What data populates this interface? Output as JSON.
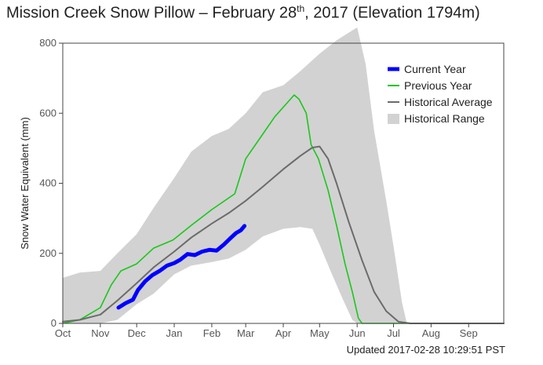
{
  "title": {
    "main": "Mission Creek Snow Pillow – February 28",
    "sup": "th",
    "rest": ", 2017 (Elevation 1794m)"
  },
  "updated": "Updated 2017-02-28 10:29:51 PST",
  "chart_data": {
    "type": "area",
    "title": "Mission Creek Snow Pillow – February 28th, 2017 (Elevation 1794m)",
    "xlabel": "",
    "ylabel": "Snow Water Equivalent (mm)",
    "xlim": [
      "2016-10-01",
      "2017-09-30"
    ],
    "ylim": [
      0,
      800
    ],
    "yticks": [
      0,
      200,
      400,
      600,
      800
    ],
    "month_ticks": [
      {
        "date": "2016-10-01",
        "label": "Oct"
      },
      {
        "date": "2016-11-01",
        "label": "Nov"
      },
      {
        "date": "2016-12-01",
        "label": "Dec"
      },
      {
        "date": "2017-01-01",
        "label": "Jan"
      },
      {
        "date": "2017-02-01",
        "label": "Feb"
      },
      {
        "date": "2017-03-01",
        "label": "Mar"
      },
      {
        "date": "2017-04-01",
        "label": "Apr"
      },
      {
        "date": "2017-05-01",
        "label": "May"
      },
      {
        "date": "2017-06-01",
        "label": "Jun"
      },
      {
        "date": "2017-07-01",
        "label": "Jul"
      },
      {
        "date": "2017-08-01",
        "label": "Aug"
      },
      {
        "date": "2017-09-01",
        "label": "Sep"
      }
    ],
    "legend_position": "top-right",
    "grid": false,
    "colors": {
      "current": "#0000ff",
      "previous": "#19c819",
      "average": "#6b6b6b",
      "range": "#d2d2d2"
    },
    "series": [
      {
        "name": "Current Year",
        "key": "current",
        "points": [
          [
            "2016-11-16",
            45
          ],
          [
            "2016-11-22",
            58
          ],
          [
            "2016-11-28",
            68
          ],
          [
            "2016-12-02",
            95
          ],
          [
            "2016-12-08",
            120
          ],
          [
            "2016-12-14",
            138
          ],
          [
            "2016-12-20",
            150
          ],
          [
            "2016-12-26",
            165
          ],
          [
            "2017-01-01",
            172
          ],
          [
            "2017-01-06",
            182
          ],
          [
            "2017-01-12",
            198
          ],
          [
            "2017-01-18",
            195
          ],
          [
            "2017-01-24",
            205
          ],
          [
            "2017-01-30",
            210
          ],
          [
            "2017-02-05",
            208
          ],
          [
            "2017-02-11",
            225
          ],
          [
            "2017-02-16",
            242
          ],
          [
            "2017-02-21",
            258
          ],
          [
            "2017-02-25",
            266
          ],
          [
            "2017-02-28",
            278
          ]
        ]
      },
      {
        "name": "Previous Year",
        "key": "previous",
        "points": [
          [
            "2016-10-01",
            0
          ],
          [
            "2016-10-15",
            10
          ],
          [
            "2016-11-01",
            45
          ],
          [
            "2016-11-10",
            110
          ],
          [
            "2016-11-18",
            150
          ],
          [
            "2016-12-01",
            170
          ],
          [
            "2016-12-15",
            215
          ],
          [
            "2016-12-31",
            238
          ],
          [
            "2017-01-15",
            280
          ],
          [
            "2017-02-01",
            325
          ],
          [
            "2017-02-20",
            370
          ],
          [
            "2017-03-01",
            470
          ],
          [
            "2017-03-15",
            540
          ],
          [
            "2017-03-25",
            590
          ],
          [
            "2017-04-03",
            625
          ],
          [
            "2017-04-10",
            652
          ],
          [
            "2017-04-14",
            640
          ],
          [
            "2017-04-20",
            600
          ],
          [
            "2017-04-24",
            510
          ],
          [
            "2017-04-30",
            470
          ],
          [
            "2017-05-08",
            380
          ],
          [
            "2017-05-15",
            280
          ],
          [
            "2017-05-22",
            170
          ],
          [
            "2017-05-28",
            90
          ],
          [
            "2017-06-02",
            15
          ],
          [
            "2017-06-05",
            0
          ],
          [
            "2017-09-30",
            0
          ]
        ]
      },
      {
        "name": "Historical Average",
        "key": "average",
        "points": [
          [
            "2016-10-01",
            5
          ],
          [
            "2016-10-15",
            10
          ],
          [
            "2016-11-01",
            25
          ],
          [
            "2016-11-15",
            65
          ],
          [
            "2016-12-01",
            115
          ],
          [
            "2016-12-15",
            160
          ],
          [
            "2017-01-01",
            205
          ],
          [
            "2017-01-15",
            245
          ],
          [
            "2017-02-01",
            285
          ],
          [
            "2017-02-15",
            315
          ],
          [
            "2017-03-01",
            350
          ],
          [
            "2017-03-15",
            390
          ],
          [
            "2017-04-01",
            440
          ],
          [
            "2017-04-15",
            478
          ],
          [
            "2017-04-25",
            502
          ],
          [
            "2017-05-01",
            505
          ],
          [
            "2017-05-08",
            470
          ],
          [
            "2017-05-15",
            400
          ],
          [
            "2017-05-25",
            290
          ],
          [
            "2017-06-05",
            180
          ],
          [
            "2017-06-15",
            90
          ],
          [
            "2017-06-25",
            35
          ],
          [
            "2017-07-05",
            5
          ],
          [
            "2017-07-15",
            0
          ],
          [
            "2017-09-30",
            0
          ]
        ]
      },
      {
        "name": "Historical Range",
        "key": "range",
        "upper": [
          [
            "2016-10-01",
            130
          ],
          [
            "2016-10-15",
            145
          ],
          [
            "2016-11-01",
            150
          ],
          [
            "2016-11-15",
            200
          ],
          [
            "2016-12-01",
            255
          ],
          [
            "2016-12-15",
            330
          ],
          [
            "2017-01-01",
            415
          ],
          [
            "2017-01-15",
            490
          ],
          [
            "2017-02-01",
            535
          ],
          [
            "2017-02-15",
            555
          ],
          [
            "2017-03-01",
            600
          ],
          [
            "2017-03-15",
            660
          ],
          [
            "2017-04-01",
            680
          ],
          [
            "2017-04-15",
            720
          ],
          [
            "2017-05-01",
            770
          ],
          [
            "2017-05-15",
            808
          ],
          [
            "2017-05-25",
            830
          ],
          [
            "2017-06-01",
            845
          ],
          [
            "2017-06-08",
            740
          ],
          [
            "2017-06-15",
            550
          ],
          [
            "2017-06-25",
            350
          ],
          [
            "2017-07-01",
            220
          ],
          [
            "2017-07-08",
            60
          ],
          [
            "2017-07-12",
            0
          ],
          [
            "2017-09-30",
            0
          ]
        ],
        "lower": [
          [
            "2016-10-01",
            0
          ],
          [
            "2016-11-01",
            0
          ],
          [
            "2016-11-15",
            10
          ],
          [
            "2016-12-01",
            55
          ],
          [
            "2016-12-15",
            85
          ],
          [
            "2017-01-01",
            140
          ],
          [
            "2017-01-15",
            165
          ],
          [
            "2017-02-01",
            175
          ],
          [
            "2017-02-15",
            185
          ],
          [
            "2017-03-01",
            210
          ],
          [
            "2017-03-15",
            248
          ],
          [
            "2017-04-01",
            270
          ],
          [
            "2017-04-15",
            275
          ],
          [
            "2017-04-25",
            270
          ],
          [
            "2017-05-01",
            225
          ],
          [
            "2017-05-10",
            150
          ],
          [
            "2017-05-20",
            70
          ],
          [
            "2017-05-28",
            10
          ],
          [
            "2017-06-01",
            0
          ],
          [
            "2017-09-30",
            0
          ]
        ]
      }
    ]
  }
}
